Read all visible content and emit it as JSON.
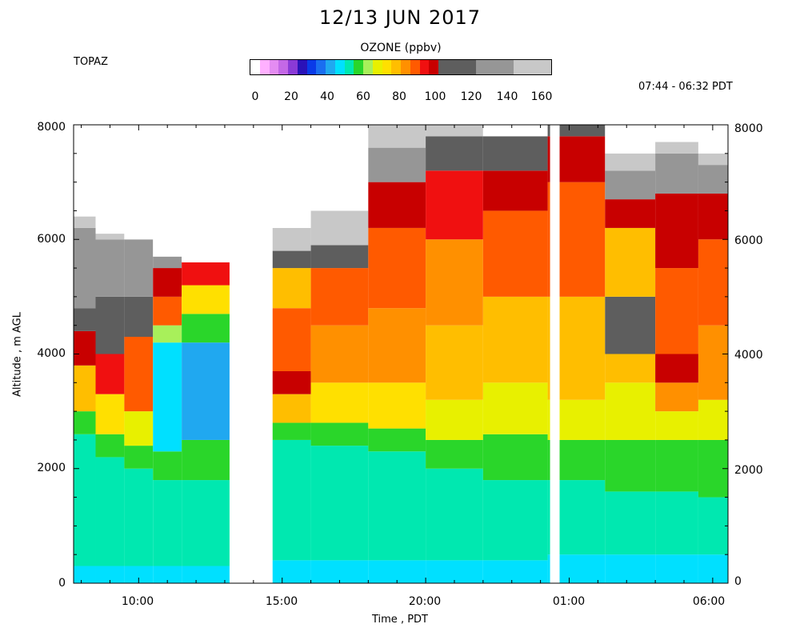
{
  "chart_data": {
    "type": "heatmap",
    "title": "12/13 JUN 2017",
    "station": "TOPAZ",
    "time_range": "07:44 - 06:32 PDT",
    "colorbar": {
      "title": "OZONE (ppbv)",
      "ticks": [
        "0",
        "20",
        "40",
        "60",
        "80",
        "100",
        "120",
        "140",
        "160"
      ],
      "range": [
        0,
        160
      ],
      "bins": [
        {
          "from": 0,
          "to": 5,
          "color": "#ffffff"
        },
        {
          "from": 5,
          "to": 10,
          "color": "#ffb0ff"
        },
        {
          "from": 10,
          "to": 15,
          "color": "#e48cf2"
        },
        {
          "from": 15,
          "to": 20,
          "color": "#c468e6"
        },
        {
          "from": 20,
          "to": 25,
          "color": "#8a3ad6"
        },
        {
          "from": 25,
          "to": 30,
          "color": "#2a12b8"
        },
        {
          "from": 30,
          "to": 35,
          "color": "#0a3ae8"
        },
        {
          "from": 35,
          "to": 40,
          "color": "#1a6ef0"
        },
        {
          "from": 40,
          "to": 45,
          "color": "#20a8f0"
        },
        {
          "from": 45,
          "to": 50,
          "color": "#00e0ff"
        },
        {
          "from": 50,
          "to": 55,
          "color": "#00e8b0"
        },
        {
          "from": 55,
          "to": 60,
          "color": "#2ad62a"
        },
        {
          "from": 60,
          "to": 65,
          "color": "#a8f05a"
        },
        {
          "from": 65,
          "to": 70,
          "color": "#e8f000"
        },
        {
          "from": 70,
          "to": 75,
          "color": "#ffe000"
        },
        {
          "from": 75,
          "to": 80,
          "color": "#ffbe00"
        },
        {
          "from": 80,
          "to": 85,
          "color": "#ff9000"
        },
        {
          "from": 85,
          "to": 90,
          "color": "#ff5a00"
        },
        {
          "from": 90,
          "to": 95,
          "color": "#f01010"
        },
        {
          "from": 95,
          "to": 100,
          "color": "#c80000"
        },
        {
          "from": 100,
          "to": 120,
          "color": "#5e5e5e"
        },
        {
          "from": 120,
          "to": 140,
          "color": "#969696"
        },
        {
          "from": 140,
          "to": 160,
          "color": "#c8c8c8"
        }
      ]
    },
    "xlabel": "Time , PDT",
    "ylabel": "Altitude , m AGL",
    "x_ticks": [
      "10:00",
      "15:00",
      "20:00",
      "01:00",
      "06:00"
    ],
    "y_ticks": [
      "0",
      "2000",
      "4000",
      "6000",
      "8000"
    ],
    "xlim": [
      "07:44",
      "06:32"
    ],
    "ylim": [
      0,
      8000
    ],
    "data_gaps": [
      {
        "from": "13:10",
        "to": "14:40"
      },
      {
        "from": "00:20",
        "to": "00:40"
      }
    ],
    "profiles": [
      {
        "time": "08:00",
        "bands": [
          [
            0,
            45
          ],
          [
            300,
            50
          ],
          [
            2600,
            55
          ],
          [
            3000,
            75
          ],
          [
            3800,
            95
          ],
          [
            4400,
            100
          ],
          [
            4800,
            120
          ],
          [
            6200,
            140
          ],
          [
            6400,
            null
          ]
        ]
      },
      {
        "time": "09:00",
        "bands": [
          [
            0,
            45
          ],
          [
            300,
            50
          ],
          [
            2200,
            55
          ],
          [
            2600,
            70
          ],
          [
            3300,
            90
          ],
          [
            4000,
            100
          ],
          [
            5000,
            120
          ],
          [
            6000,
            140
          ],
          [
            6100,
            null
          ]
        ]
      },
      {
        "time": "10:00",
        "bands": [
          [
            0,
            45
          ],
          [
            300,
            50
          ],
          [
            2000,
            55
          ],
          [
            2400,
            65
          ],
          [
            3000,
            85
          ],
          [
            4300,
            100
          ],
          [
            5000,
            120
          ],
          [
            6000,
            140
          ],
          [
            6000,
            null
          ]
        ]
      },
      {
        "time": "11:00",
        "bands": [
          [
            0,
            45
          ],
          [
            300,
            50
          ],
          [
            1800,
            55
          ],
          [
            2300,
            45
          ],
          [
            4200,
            60
          ],
          [
            4500,
            85
          ],
          [
            5000,
            95
          ],
          [
            5500,
            120
          ],
          [
            5700,
            null
          ]
        ]
      },
      {
        "time": "12:00",
        "bands": [
          [
            0,
            45
          ],
          [
            300,
            50
          ],
          [
            1800,
            55
          ],
          [
            2500,
            40
          ],
          [
            4200,
            55
          ],
          [
            4700,
            70
          ],
          [
            5200,
            90
          ],
          [
            5600,
            null
          ]
        ]
      },
      {
        "time": "15:00",
        "bands": [
          [
            0,
            45
          ],
          [
            400,
            50
          ],
          [
            2500,
            55
          ],
          [
            2800,
            75
          ],
          [
            3300,
            95
          ],
          [
            3700,
            85
          ],
          [
            4800,
            75
          ],
          [
            5500,
            100
          ],
          [
            5800,
            140
          ],
          [
            6200,
            null
          ]
        ]
      },
      {
        "time": "17:00",
        "bands": [
          [
            0,
            45
          ],
          [
            400,
            50
          ],
          [
            2400,
            55
          ],
          [
            2800,
            70
          ],
          [
            3500,
            80
          ],
          [
            4500,
            85
          ],
          [
            5500,
            100
          ],
          [
            5900,
            140
          ],
          [
            6500,
            null
          ]
        ]
      },
      {
        "time": "19:00",
        "bands": [
          [
            0,
            45
          ],
          [
            400,
            50
          ],
          [
            2300,
            55
          ],
          [
            2700,
            70
          ],
          [
            3500,
            80
          ],
          [
            4800,
            85
          ],
          [
            6200,
            95
          ],
          [
            7000,
            120
          ],
          [
            7600,
            140
          ],
          [
            8000,
            null
          ]
        ]
      },
      {
        "time": "21:00",
        "bands": [
          [
            0,
            45
          ],
          [
            400,
            50
          ],
          [
            2000,
            55
          ],
          [
            2500,
            65
          ],
          [
            3200,
            75
          ],
          [
            4500,
            80
          ],
          [
            6000,
            90
          ],
          [
            7200,
            100
          ],
          [
            7800,
            140
          ],
          [
            8000,
            null
          ]
        ]
      },
      {
        "time": "23:00",
        "bands": [
          [
            0,
            45
          ],
          [
            400,
            50
          ],
          [
            1800,
            55
          ],
          [
            2600,
            65
          ],
          [
            3500,
            75
          ],
          [
            5000,
            85
          ],
          [
            6500,
            95
          ],
          [
            7200,
            100
          ],
          [
            7800,
            null
          ]
        ]
      },
      {
        "time": "01:30",
        "bands": [
          [
            0,
            45
          ],
          [
            500,
            50
          ],
          [
            1800,
            55
          ],
          [
            2500,
            65
          ],
          [
            3200,
            75
          ],
          [
            5000,
            85
          ],
          [
            7000,
            95
          ],
          [
            7800,
            100
          ],
          [
            8000,
            null
          ]
        ]
      },
      {
        "time": "03:00",
        "bands": [
          [
            0,
            45
          ],
          [
            500,
            50
          ],
          [
            1600,
            55
          ],
          [
            2500,
            65
          ],
          [
            3500,
            75
          ],
          [
            4000,
            100
          ],
          [
            5000,
            75
          ],
          [
            6200,
            95
          ],
          [
            6700,
            120
          ],
          [
            7200,
            140
          ],
          [
            7500,
            null
          ]
        ]
      },
      {
        "time": "05:00",
        "bands": [
          [
            0,
            45
          ],
          [
            500,
            50
          ],
          [
            1600,
            55
          ],
          [
            2500,
            65
          ],
          [
            3000,
            80
          ],
          [
            3500,
            95
          ],
          [
            4000,
            85
          ],
          [
            5500,
            95
          ],
          [
            6800,
            120
          ],
          [
            7500,
            140
          ],
          [
            7700,
            null
          ]
        ]
      },
      {
        "time": "06:00",
        "bands": [
          [
            0,
            45
          ],
          [
            500,
            50
          ],
          [
            1500,
            55
          ],
          [
            2500,
            65
          ],
          [
            3200,
            80
          ],
          [
            4500,
            85
          ],
          [
            6000,
            95
          ],
          [
            6800,
            120
          ],
          [
            7300,
            140
          ],
          [
            7500,
            null
          ]
        ]
      }
    ]
  }
}
